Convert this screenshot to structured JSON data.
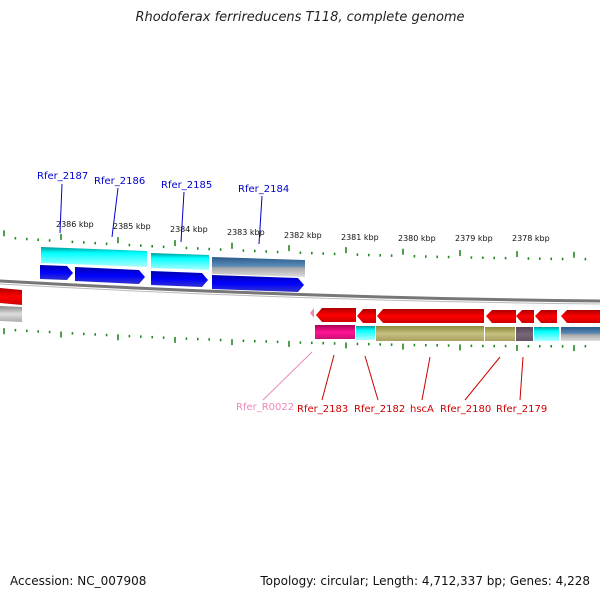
{
  "title": "Rhodoferax ferrireducens T118, complete genome",
  "footer": {
    "accession": "Accession: NC_007908",
    "summary": "Topology: circular; Length: 4,712,337 bp; Genes: 4,228"
  },
  "colors": {
    "forward_label": "#0000cc",
    "reverse_label": "#cc0000",
    "rna_label": "#ee88bb",
    "tick": "#228822"
  },
  "kbp_labels": [
    "2386 kbp",
    "2385 kbp",
    "2384 kbp",
    "2383 kbp",
    "2382 kbp",
    "2381 kbp",
    "2380 kbp",
    "2379 kbp",
    "2378 kbp"
  ],
  "forward_genes": [
    "Rfer_2187",
    "Rfer_2186",
    "Rfer_2185",
    "Rfer_2184"
  ],
  "reverse_genes": [
    "Rfer_R0022",
    "Rfer_2183",
    "Rfer_2182",
    "hscA",
    "Rfer_2180",
    "Rfer_2179"
  ]
}
